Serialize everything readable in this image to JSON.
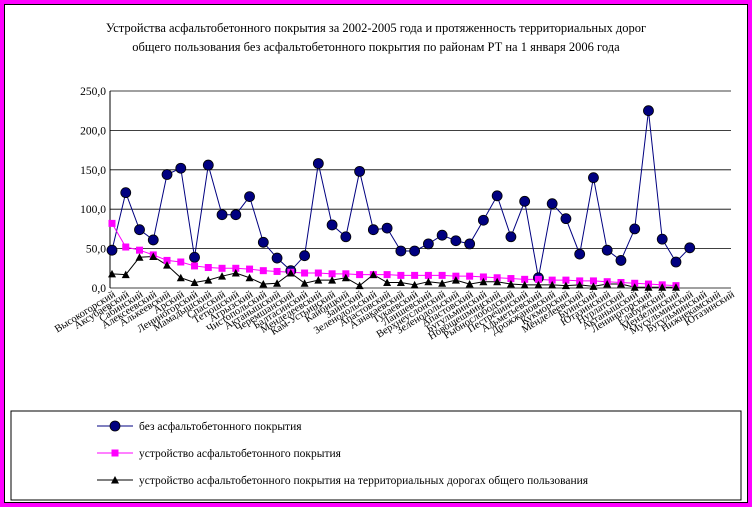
{
  "chart_data": {
    "type": "line",
    "title_line1": "Устройства асфальтобетонного покрытия за 2002-2005 года и протяженность территориальных дорог",
    "title_line2": "общего пользования без асфальтобетонного покрытия по районам РТ на 1 января 2006 года",
    "ylim": [
      0,
      250
    ],
    "yticks": [
      "0,0",
      "50,0",
      "100,0",
      "150,0",
      "200,0",
      "250,0"
    ],
    "grid": "horizontal",
    "legend_position": "bottom",
    "categories": [
      "Высокогорский",
      "Аксубаевский",
      "Сабинский",
      "Алексеевский",
      "Алькеевский",
      "Арский",
      "Лениногорский",
      "Мамадышский",
      "Спасский",
      "Тетюшский",
      "Агрызский",
      "Чистопольский",
      "Актанышский",
      "Черемшанский",
      "Балтасинский",
      "Менделеевский",
      "Кам-Устьинский",
      "Кайбицкий",
      "Заинский",
      "Зеленодольский",
      "Апастовский",
      "Азнакаевский",
      "Тукаевский",
      "Лаишевский",
      "Верхнеуслонский",
      "Зеленодольский",
      "Апастовский",
      "Бугульминский",
      "Новошешминский",
      "Рыбнослободский",
      "Пестречинский",
      "Альметьевский",
      "Дрожжановский",
      "Кукморский",
      "Менделеевский",
      "Буинский",
      "Ютазинский",
      "Нурлатский",
      "Актанышский",
      "Лениногорский",
      "Елабужский",
      "Мензелинский",
      "Мусульминский",
      "Бугульминский",
      "Нижнекамский",
      "Ютазинский"
    ],
    "series": [
      {
        "name": "без асфальтобетонного покрытия",
        "color": "#000080",
        "marker": "circle",
        "values": [
          48,
          121,
          74,
          61,
          144,
          152,
          39,
          156,
          93,
          93,
          116,
          58,
          38,
          22,
          41,
          158,
          80,
          65,
          148,
          74,
          76,
          47,
          47,
          56,
          67,
          60,
          56,
          86,
          117,
          65,
          110,
          13,
          107,
          88,
          43,
          140,
          48,
          35,
          75,
          225,
          62,
          33,
          51,
          null,
          null,
          null
        ]
      },
      {
        "name": "устройство асфальтобетонного покрытия",
        "color": "#ff00ff",
        "marker": "square",
        "values": [
          82,
          52,
          48,
          42,
          35,
          33,
          28,
          26,
          25,
          25,
          24,
          22,
          21,
          20,
          19,
          19,
          18,
          18,
          17,
          17,
          17,
          16,
          16,
          16,
          16,
          15,
          15,
          14,
          13,
          12,
          11,
          11,
          10,
          10,
          9,
          9,
          8,
          7,
          6,
          5,
          4,
          3,
          null,
          null,
          null,
          null
        ]
      },
      {
        "name": "устройство асфальтобетонного покрытия на территориальных дорогах общего пользования",
        "color": "#000000",
        "marker": "triangle",
        "values": [
          18,
          17,
          39,
          40,
          29,
          13,
          7,
          10,
          15,
          19,
          13,
          5,
          6,
          19,
          6,
          10,
          10,
          13,
          3,
          17,
          7,
          7,
          4,
          8,
          6,
          10,
          5,
          8,
          8,
          5,
          4,
          4,
          4,
          3,
          4,
          2,
          5,
          5,
          1,
          1,
          1,
          1,
          null,
          null,
          null,
          null
        ]
      }
    ]
  }
}
